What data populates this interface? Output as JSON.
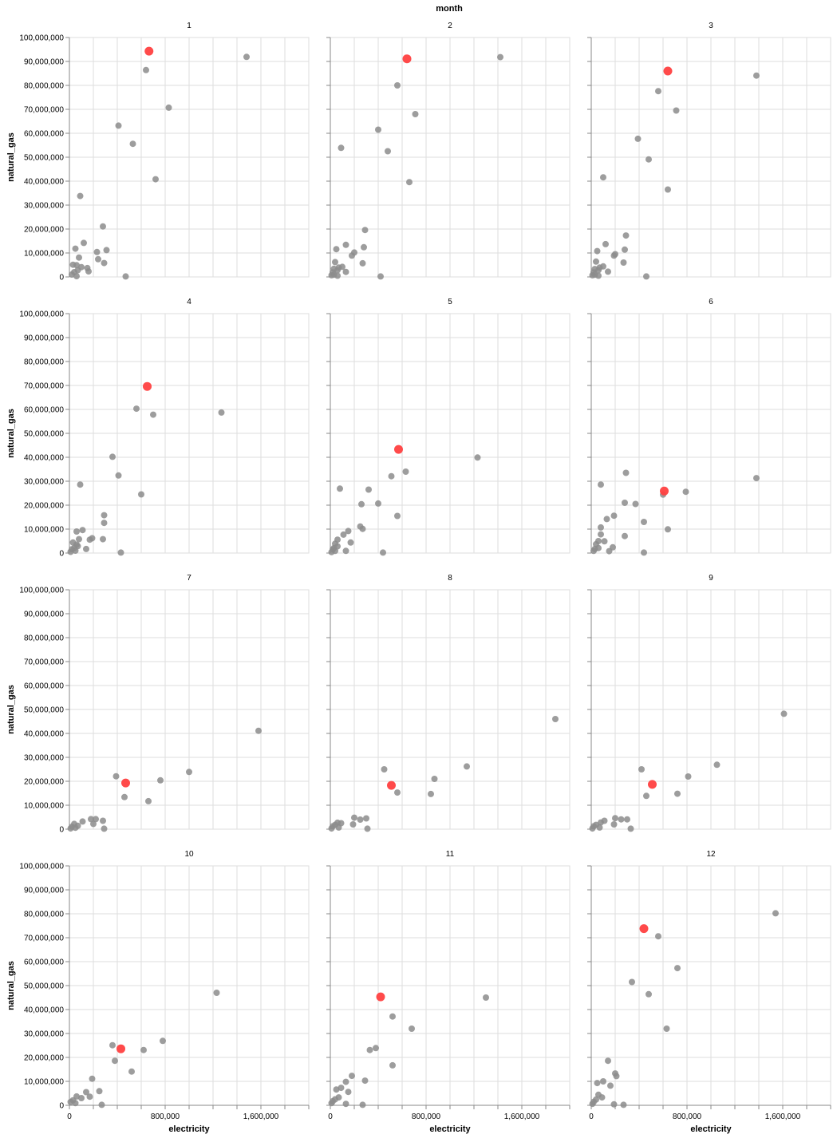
{
  "chart_data": {
    "type": "scatter",
    "facet_title": "month",
    "xlabel": "electricity",
    "ylabel": "natural_gas",
    "xlim": [
      0,
      2000000
    ],
    "ylim": [
      0,
      100000000
    ],
    "x_ticks": [
      0,
      800000,
      1600000
    ],
    "x_tick_labels": [
      "0",
      "800,000",
      "1,600,000"
    ],
    "y_ticks": [
      0,
      10000000,
      20000000,
      30000000,
      40000000,
      50000000,
      60000000,
      70000000,
      80000000,
      90000000,
      100000000
    ],
    "y_tick_labels": [
      "0",
      "10,000,000",
      "20,000,000",
      "30,000,000",
      "40,000,000",
      "50,000,000",
      "60,000,000",
      "70,000,000",
      "80,000,000",
      "90,000,000",
      "100,000,000"
    ],
    "grid": true,
    "colors": {
      "point": "#8c8c8c",
      "highlight": "#ff4040",
      "grid": "#dddddd",
      "axis": "#888888"
    },
    "panels": [
      {
        "month": "1",
        "highlight": [
          665000,
          94300000
        ],
        "points": [
          [
            1480000,
            91900000
          ],
          [
            640000,
            86400000
          ],
          [
            830000,
            70700000
          ],
          [
            410000,
            63200000
          ],
          [
            530000,
            55600000
          ],
          [
            720000,
            40800000
          ],
          [
            90000,
            33800000
          ],
          [
            280000,
            21100000
          ],
          [
            310000,
            11200000
          ],
          [
            230000,
            10400000
          ],
          [
            50000,
            11800000
          ],
          [
            120000,
            14200000
          ],
          [
            80000,
            8100000
          ],
          [
            160000,
            2300000
          ],
          [
            150000,
            3700000
          ],
          [
            240000,
            7400000
          ],
          [
            290000,
            5800000
          ],
          [
            30000,
            5100000
          ],
          [
            60000,
            4900000
          ],
          [
            100000,
            4100000
          ],
          [
            70000,
            2800000
          ],
          [
            40000,
            2000000
          ],
          [
            20000,
            1000000
          ],
          [
            60000,
            300000
          ],
          [
            470000,
            200000
          ]
        ]
      },
      {
        "month": "2",
        "highlight": [
          640000,
          91100000
        ],
        "points": [
          [
            1420000,
            91800000
          ],
          [
            560000,
            80000000
          ],
          [
            710000,
            68000000
          ],
          [
            400000,
            61500000
          ],
          [
            90000,
            53900000
          ],
          [
            480000,
            52500000
          ],
          [
            660000,
            39600000
          ],
          [
            290000,
            19600000
          ],
          [
            280000,
            12400000
          ],
          [
            200000,
            10200000
          ],
          [
            130000,
            13400000
          ],
          [
            50000,
            11600000
          ],
          [
            180000,
            8900000
          ],
          [
            270000,
            5700000
          ],
          [
            40000,
            6200000
          ],
          [
            70000,
            3900000
          ],
          [
            100000,
            4200000
          ],
          [
            130000,
            2100000
          ],
          [
            30000,
            3400000
          ],
          [
            60000,
            2800000
          ],
          [
            20000,
            1900000
          ],
          [
            30000,
            900000
          ],
          [
            10000,
            700000
          ],
          [
            60000,
            500000
          ],
          [
            420000,
            200000
          ]
        ]
      },
      {
        "month": "3",
        "highlight": [
          640000,
          86000000
        ],
        "points": [
          [
            1380000,
            84100000
          ],
          [
            560000,
            77600000
          ],
          [
            710000,
            69500000
          ],
          [
            390000,
            57700000
          ],
          [
            480000,
            49100000
          ],
          [
            640000,
            36500000
          ],
          [
            100000,
            41600000
          ],
          [
            290000,
            17300000
          ],
          [
            280000,
            11400000
          ],
          [
            200000,
            9500000
          ],
          [
            120000,
            13700000
          ],
          [
            50000,
            10800000
          ],
          [
            190000,
            8900000
          ],
          [
            270000,
            6000000
          ],
          [
            40000,
            6400000
          ],
          [
            70000,
            3900000
          ],
          [
            100000,
            4400000
          ],
          [
            140000,
            2200000
          ],
          [
            30000,
            3300000
          ],
          [
            60000,
            2800000
          ],
          [
            20000,
            1900000
          ],
          [
            30000,
            900000
          ],
          [
            10000,
            700000
          ],
          [
            60000,
            500000
          ],
          [
            460000,
            200000
          ]
        ]
      },
      {
        "month": "4",
        "highlight": [
          650000,
          69600000
        ],
        "points": [
          [
            1270000,
            58700000
          ],
          [
            560000,
            60300000
          ],
          [
            700000,
            57800000
          ],
          [
            360000,
            40200000
          ],
          [
            410000,
            32400000
          ],
          [
            600000,
            24500000
          ],
          [
            90000,
            28600000
          ],
          [
            290000,
            15800000
          ],
          [
            290000,
            12600000
          ],
          [
            190000,
            6200000
          ],
          [
            170000,
            5600000
          ],
          [
            280000,
            5800000
          ],
          [
            60000,
            9000000
          ],
          [
            110000,
            9600000
          ],
          [
            140000,
            1700000
          ],
          [
            30000,
            4400000
          ],
          [
            60000,
            3500000
          ],
          [
            70000,
            2900000
          ],
          [
            40000,
            2100000
          ],
          [
            20000,
            1600000
          ],
          [
            50000,
            1000000
          ],
          [
            10000,
            500000
          ],
          [
            80000,
            5800000
          ],
          [
            430000,
            200000
          ]
        ]
      },
      {
        "month": "5",
        "highlight": [
          570000,
          43300000
        ],
        "points": [
          [
            1230000,
            39900000
          ],
          [
            630000,
            34000000
          ],
          [
            510000,
            32100000
          ],
          [
            320000,
            26500000
          ],
          [
            80000,
            26900000
          ],
          [
            400000,
            20700000
          ],
          [
            260000,
            20400000
          ],
          [
            560000,
            15500000
          ],
          [
            250000,
            11100000
          ],
          [
            170000,
            4400000
          ],
          [
            110000,
            7700000
          ],
          [
            60000,
            5600000
          ],
          [
            150000,
            9200000
          ],
          [
            270000,
            10100000
          ],
          [
            40000,
            3900000
          ],
          [
            60000,
            2800000
          ],
          [
            30000,
            2100000
          ],
          [
            20000,
            1500000
          ],
          [
            40000,
            900000
          ],
          [
            10000,
            400000
          ],
          [
            130000,
            900000
          ],
          [
            440000,
            200000
          ]
        ]
      },
      {
        "month": "6",
        "highlight": [
          610000,
          25900000
        ],
        "points": [
          [
            1380000,
            31300000
          ],
          [
            790000,
            25600000
          ],
          [
            600000,
            24400000
          ],
          [
            290000,
            33500000
          ],
          [
            80000,
            28600000
          ],
          [
            280000,
            21000000
          ],
          [
            370000,
            20500000
          ],
          [
            190000,
            15600000
          ],
          [
            130000,
            14200000
          ],
          [
            440000,
            13000000
          ],
          [
            80000,
            10700000
          ],
          [
            640000,
            9900000
          ],
          [
            80000,
            7800000
          ],
          [
            280000,
            7100000
          ],
          [
            60000,
            5000000
          ],
          [
            40000,
            3700000
          ],
          [
            110000,
            4900000
          ],
          [
            180000,
            2400000
          ],
          [
            60000,
            2100000
          ],
          [
            30000,
            1700000
          ],
          [
            20000,
            900000
          ],
          [
            150000,
            800000
          ],
          [
            440000,
            200000
          ]
        ]
      },
      {
        "month": "7",
        "highlight": [
          470000,
          19300000
        ],
        "points": [
          [
            1580000,
            41100000
          ],
          [
            1000000,
            23900000
          ],
          [
            760000,
            20400000
          ],
          [
            390000,
            22100000
          ],
          [
            460000,
            13400000
          ],
          [
            660000,
            11700000
          ],
          [
            180000,
            4200000
          ],
          [
            220000,
            4200000
          ],
          [
            280000,
            3500000
          ],
          [
            110000,
            3200000
          ],
          [
            200000,
            2200000
          ],
          [
            40000,
            2200000
          ],
          [
            70000,
            1400000
          ],
          [
            20000,
            1000000
          ],
          [
            50000,
            600000
          ],
          [
            10000,
            300000
          ],
          [
            290000,
            200000
          ]
        ]
      },
      {
        "month": "8",
        "highlight": [
          510000,
          18300000
        ],
        "points": [
          [
            1880000,
            46000000
          ],
          [
            1140000,
            26200000
          ],
          [
            450000,
            25000000
          ],
          [
            870000,
            21000000
          ],
          [
            560000,
            15300000
          ],
          [
            840000,
            14700000
          ],
          [
            200000,
            4800000
          ],
          [
            250000,
            4000000
          ],
          [
            300000,
            4500000
          ],
          [
            190000,
            2000000
          ],
          [
            60000,
            2700000
          ],
          [
            90000,
            2500000
          ],
          [
            40000,
            1800000
          ],
          [
            20000,
            1200000
          ],
          [
            70000,
            700000
          ],
          [
            10000,
            300000
          ],
          [
            310000,
            200000
          ]
        ]
      },
      {
        "month": "9",
        "highlight": [
          510000,
          18700000
        ],
        "points": [
          [
            1610000,
            48200000
          ],
          [
            1050000,
            26900000
          ],
          [
            420000,
            25000000
          ],
          [
            810000,
            22000000
          ],
          [
            460000,
            13900000
          ],
          [
            720000,
            14800000
          ],
          [
            200000,
            4600000
          ],
          [
            250000,
            4100000
          ],
          [
            300000,
            4100000
          ],
          [
            190000,
            2000000
          ],
          [
            80000,
            2800000
          ],
          [
            110000,
            3500000
          ],
          [
            40000,
            1800000
          ],
          [
            20000,
            1200000
          ],
          [
            70000,
            700000
          ],
          [
            10000,
            300000
          ],
          [
            330000,
            200000
          ]
        ]
      },
      {
        "month": "10",
        "highlight": [
          430000,
          23600000
        ],
        "points": [
          [
            1230000,
            47000000
          ],
          [
            780000,
            26900000
          ],
          [
            360000,
            25100000
          ],
          [
            620000,
            23100000
          ],
          [
            380000,
            18600000
          ],
          [
            520000,
            14100000
          ],
          [
            190000,
            11100000
          ],
          [
            140000,
            5500000
          ],
          [
            250000,
            5900000
          ],
          [
            170000,
            3600000
          ],
          [
            100000,
            3000000
          ],
          [
            60000,
            3700000
          ],
          [
            30000,
            2100000
          ],
          [
            10000,
            1400000
          ],
          [
            50000,
            900000
          ],
          [
            270000,
            200000
          ]
        ]
      },
      {
        "month": "11",
        "highlight": [
          420000,
          45300000
        ],
        "points": [
          [
            1300000,
            45000000
          ],
          [
            520000,
            37100000
          ],
          [
            680000,
            32000000
          ],
          [
            380000,
            23900000
          ],
          [
            330000,
            23100000
          ],
          [
            290000,
            10300000
          ],
          [
            520000,
            16700000
          ],
          [
            180000,
            12300000
          ],
          [
            130000,
            9800000
          ],
          [
            90000,
            7300000
          ],
          [
            150000,
            5600000
          ],
          [
            50000,
            6600000
          ],
          [
            70000,
            3300000
          ],
          [
            40000,
            2500000
          ],
          [
            20000,
            1700000
          ],
          [
            10000,
            900000
          ],
          [
            130000,
            600000
          ],
          [
            270000,
            200000
          ]
        ]
      },
      {
        "month": "12",
        "highlight": [
          440000,
          73800000
        ],
        "points": [
          [
            1540000,
            80200000
          ],
          [
            560000,
            70600000
          ],
          [
            720000,
            57300000
          ],
          [
            340000,
            51500000
          ],
          [
            480000,
            46400000
          ],
          [
            630000,
            32000000
          ],
          [
            140000,
            18600000
          ],
          [
            210000,
            12200000
          ],
          [
            200000,
            13300000
          ],
          [
            100000,
            10000000
          ],
          [
            50000,
            9300000
          ],
          [
            160000,
            8200000
          ],
          [
            60000,
            4400000
          ],
          [
            90000,
            3300000
          ],
          [
            40000,
            2400000
          ],
          [
            20000,
            1400000
          ],
          [
            10000,
            600000
          ],
          [
            190000,
            400000
          ],
          [
            270000,
            200000
          ]
        ]
      }
    ]
  }
}
